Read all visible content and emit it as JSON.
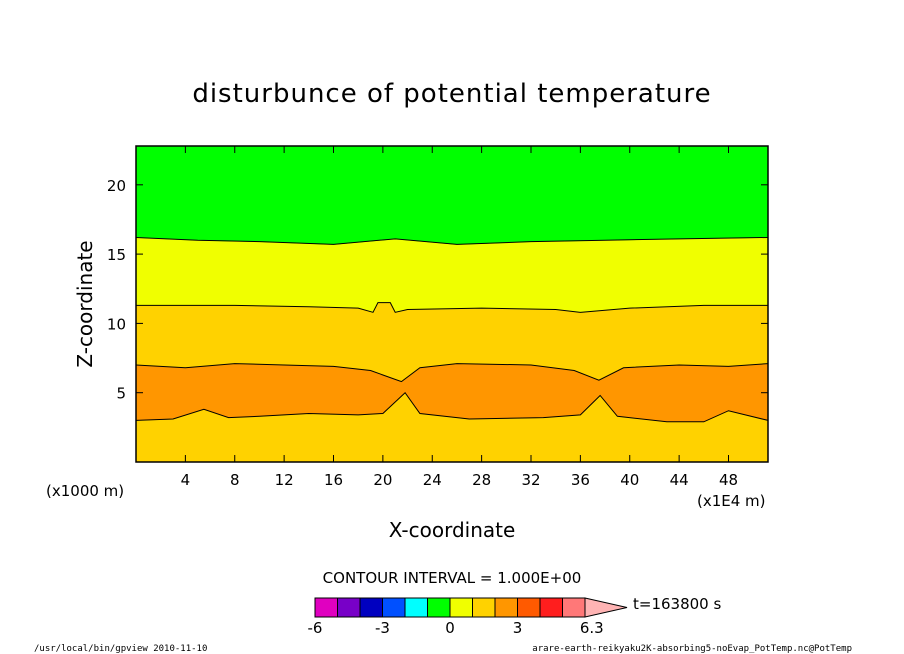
{
  "chart_data": {
    "type": "heatmap",
    "title": "disturbunce of potential temperature",
    "xlabel": "X-coordinate",
    "ylabel": "Z-coordinate",
    "x_unit_label": "(x1E4 m)",
    "y_unit_label": "(x1000 m)",
    "xlim": [
      0,
      51.2
    ],
    "ylim": [
      0,
      22.8
    ],
    "x_ticks": [
      4,
      8,
      12,
      16,
      20,
      24,
      28,
      32,
      36,
      40,
      44,
      48
    ],
    "y_ticks": [
      5,
      10,
      15,
      20
    ],
    "contour_interval_label": "CONTOUR INTERVAL = 1.000E+00",
    "time_label": "t=163800 s",
    "bands": [
      {
        "value_range": [
          1,
          2
        ],
        "color": "#ffd200",
        "lower_boundary": [
          [
            0,
            0
          ],
          [
            51.2,
            0
          ]
        ],
        "upper_boundary": [
          [
            0,
            3.0
          ],
          [
            3,
            3.1
          ],
          [
            5.5,
            3.8
          ],
          [
            7.5,
            3.2
          ],
          [
            10,
            3.3
          ],
          [
            14,
            3.5
          ],
          [
            18,
            3.4
          ],
          [
            20,
            3.5
          ],
          [
            21.8,
            5.0
          ],
          [
            23,
            3.5
          ],
          [
            27,
            3.1
          ],
          [
            33,
            3.2
          ],
          [
            36,
            3.4
          ],
          [
            37.6,
            4.8
          ],
          [
            39,
            3.3
          ],
          [
            43,
            2.9
          ],
          [
            46,
            2.9
          ],
          [
            48,
            3.7
          ],
          [
            51.2,
            3.0
          ]
        ]
      },
      {
        "value_range": [
          2,
          3
        ],
        "color": "#ff9600",
        "lower_boundary": [
          [
            0,
            3.0
          ],
          [
            3,
            3.1
          ],
          [
            5.5,
            3.8
          ],
          [
            7.5,
            3.2
          ],
          [
            10,
            3.3
          ],
          [
            14,
            3.5
          ],
          [
            18,
            3.4
          ],
          [
            20,
            3.5
          ],
          [
            21.8,
            5.0
          ],
          [
            23,
            3.5
          ],
          [
            27,
            3.1
          ],
          [
            33,
            3.2
          ],
          [
            36,
            3.4
          ],
          [
            37.6,
            4.8
          ],
          [
            39,
            3.3
          ],
          [
            43,
            2.9
          ],
          [
            46,
            2.9
          ],
          [
            48,
            3.7
          ],
          [
            51.2,
            3.0
          ]
        ],
        "upper_boundary": [
          [
            0,
            7.0
          ],
          [
            4,
            6.8
          ],
          [
            8,
            7.1
          ],
          [
            12,
            7.0
          ],
          [
            16,
            6.9
          ],
          [
            19,
            6.6
          ],
          [
            21.5,
            5.8
          ],
          [
            23,
            6.8
          ],
          [
            26,
            7.1
          ],
          [
            32,
            7.0
          ],
          [
            35.5,
            6.6
          ],
          [
            37.5,
            5.9
          ],
          [
            39.5,
            6.8
          ],
          [
            44,
            7.0
          ],
          [
            48,
            6.9
          ],
          [
            51.2,
            7.1
          ]
        ]
      },
      {
        "value_range": [
          1,
          2
        ],
        "color": "#ffd200",
        "lower_boundary": [
          [
            0,
            7.0
          ],
          [
            4,
            6.8
          ],
          [
            8,
            7.1
          ],
          [
            12,
            7.0
          ],
          [
            16,
            6.9
          ],
          [
            19,
            6.6
          ],
          [
            21.5,
            5.8
          ],
          [
            23,
            6.8
          ],
          [
            26,
            7.1
          ],
          [
            32,
            7.0
          ],
          [
            35.5,
            6.6
          ],
          [
            37.5,
            5.9
          ],
          [
            39.5,
            6.8
          ],
          [
            44,
            7.0
          ],
          [
            48,
            6.9
          ],
          [
            51.2,
            7.1
          ]
        ],
        "upper_boundary": [
          [
            0,
            11.3
          ],
          [
            8,
            11.3
          ],
          [
            14,
            11.2
          ],
          [
            18,
            11.1
          ],
          [
            19.2,
            10.8
          ],
          [
            19.6,
            11.5
          ],
          [
            20.6,
            11.5
          ],
          [
            21,
            10.8
          ],
          [
            22,
            11.0
          ],
          [
            28,
            11.1
          ],
          [
            34,
            11.0
          ],
          [
            36,
            10.8
          ],
          [
            40,
            11.1
          ],
          [
            46,
            11.3
          ],
          [
            51.2,
            11.3
          ]
        ]
      },
      {
        "value_range": [
          0,
          1
        ],
        "color": "#f0ff00",
        "lower_boundary": [
          [
            0,
            11.3
          ],
          [
            8,
            11.3
          ],
          [
            14,
            11.2
          ],
          [
            18,
            11.1
          ],
          [
            19.2,
            10.8
          ],
          [
            19.6,
            11.5
          ],
          [
            20.6,
            11.5
          ],
          [
            21,
            10.8
          ],
          [
            22,
            11.0
          ],
          [
            28,
            11.1
          ],
          [
            34,
            11.0
          ],
          [
            36,
            10.8
          ],
          [
            40,
            11.1
          ],
          [
            46,
            11.3
          ],
          [
            51.2,
            11.3
          ]
        ],
        "upper_boundary": [
          [
            0,
            16.2
          ],
          [
            5,
            16.0
          ],
          [
            10,
            15.9
          ],
          [
            16,
            15.7
          ],
          [
            21,
            16.1
          ],
          [
            26,
            15.7
          ],
          [
            32,
            15.9
          ],
          [
            38,
            16.0
          ],
          [
            44,
            16.1
          ],
          [
            51.2,
            16.2
          ]
        ]
      },
      {
        "value_range": [
          -1,
          0
        ],
        "color": "#00ff00",
        "lower_boundary": [
          [
            0,
            16.2
          ],
          [
            5,
            16.0
          ],
          [
            10,
            15.9
          ],
          [
            16,
            15.7
          ],
          [
            21,
            16.1
          ],
          [
            26,
            15.7
          ],
          [
            32,
            15.9
          ],
          [
            38,
            16.0
          ],
          [
            44,
            16.1
          ],
          [
            51.2,
            16.2
          ]
        ],
        "upper_boundary": [
          [
            0,
            22.8
          ],
          [
            51.2,
            22.8
          ]
        ]
      }
    ],
    "legend": {
      "colors": [
        "#e000c0",
        "#7800c8",
        "#0000c0",
        "#0050ff",
        "#00ffff",
        "#00ff00",
        "#f0ff00",
        "#ffd200",
        "#ff9600",
        "#ff5a00",
        "#ff1e1e",
        "#ff7878",
        "#ffb4b4"
      ],
      "tick_labels": [
        "-6",
        "-3",
        "0",
        "3",
        "6.3"
      ],
      "tick_values": [
        -6,
        -3,
        0,
        3,
        6.3
      ]
    }
  },
  "footer": {
    "left_text": "/usr/local/bin/gpview  2010-11-10",
    "right_text": "arare-earth-reikyaku2K-absorbing5-noEvap_PotTemp.nc@PotTemp"
  }
}
